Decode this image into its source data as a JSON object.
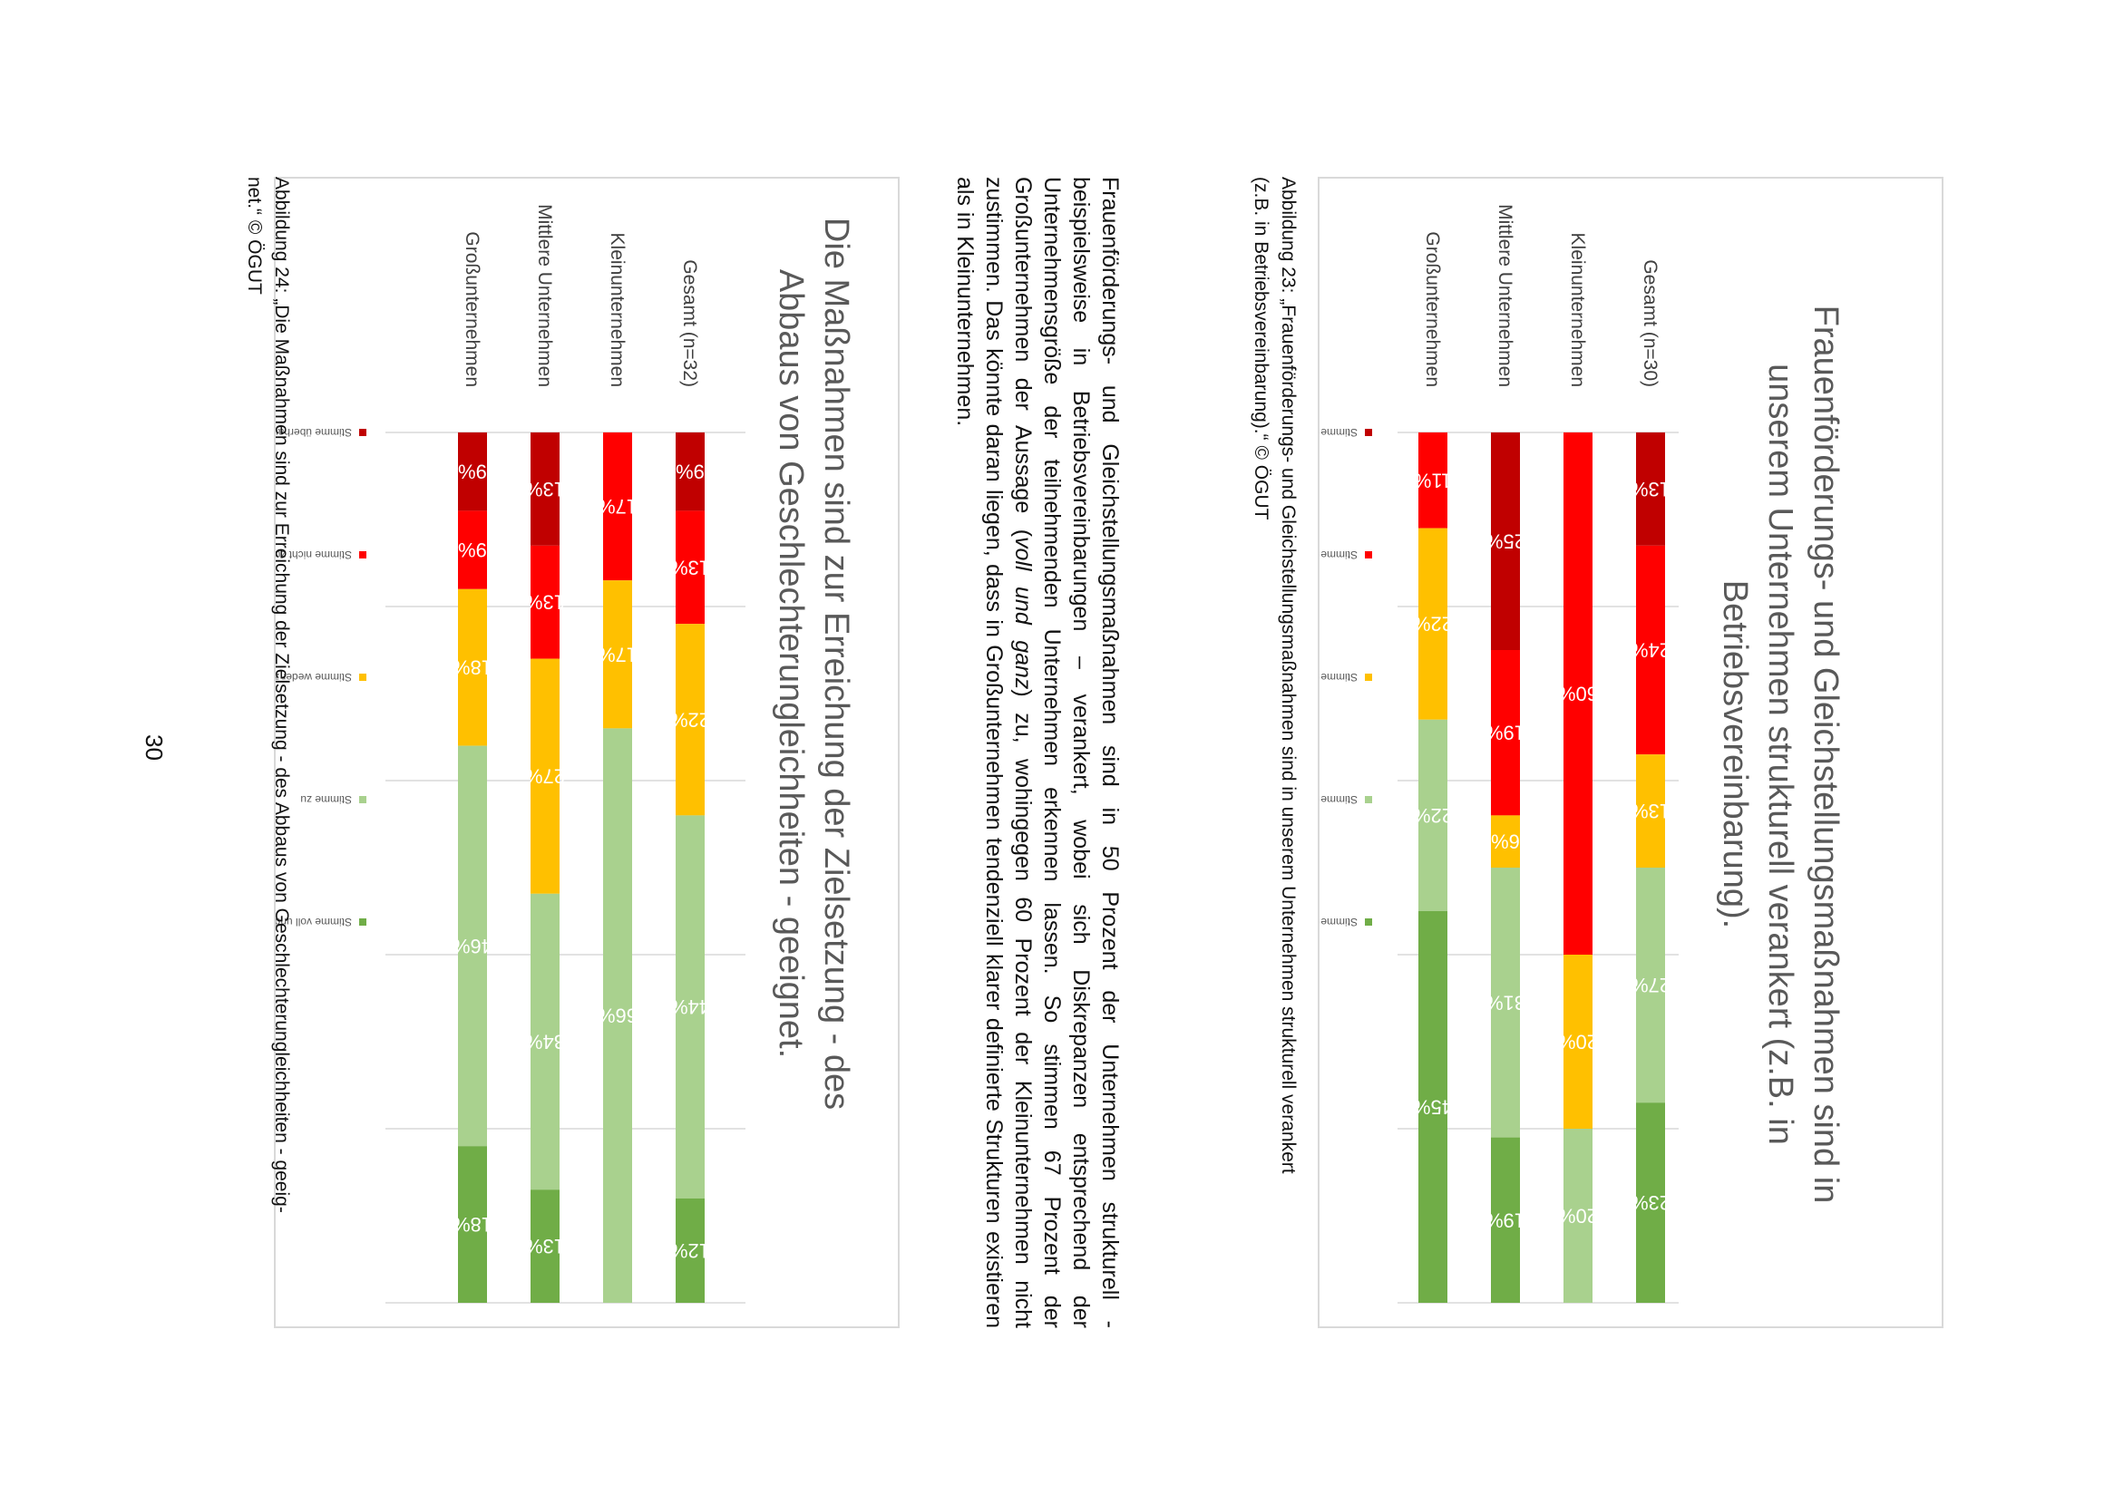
{
  "chart_data": [
    {
      "type": "bar",
      "stacked": true,
      "orientation": "horizontal",
      "title": "Frauenförderungs- und Gleichstellungsmaßnahmen sind in unserem Unternehmen strukturell verankert (z.B. in Betriebsvereinbarung).",
      "title_lines": [
        "Frauenförderungs- und Gleichstellungsmaßnahmen sind in",
        "unserem Unternehmen strukturell verankert (z.B. in",
        "Betriebsvereinbarung)."
      ],
      "categories": [
        "Gesamt (n=30)",
        "Kleinunternehmen",
        "Mittlere Unternehmen",
        "Großunternehmen"
      ],
      "series": [
        {
          "name": "Stimme überhaupt nicht zu",
          "color": "#C00000",
          "values": [
            13,
            0,
            25,
            0
          ]
        },
        {
          "name": "Stimme nicht zu",
          "color": "#FF0000",
          "values": [
            24,
            60,
            19,
            11
          ]
        },
        {
          "name": "Stimme weder zu noch lehne ich ab",
          "color": "#FFC000",
          "values": [
            13,
            20,
            6,
            22
          ]
        },
        {
          "name": "Stimme zu",
          "color": "#A9D18E",
          "values": [
            27,
            20,
            31,
            22
          ]
        },
        {
          "name": "Stimme voll und ganz zu",
          "color": "#70AD47",
          "values": [
            23,
            0,
            19,
            45
          ]
        }
      ],
      "xlim": [
        0,
        100
      ],
      "legend": "bottom",
      "grid": true
    },
    {
      "type": "bar",
      "stacked": true,
      "orientation": "horizontal",
      "title": "Die Maßnahmen sind zur Erreichung der Zielsetzung - des Abbaus von Geschlechterungleichheiten - geeignet.",
      "title_lines": [
        "Die Maßnahmen sind zur Erreichung der Zielsetzung - des",
        "Abbaus von Geschlechterungleichheiten - geeignet."
      ],
      "categories": [
        "Gesamt (n=32)",
        "Kleinunternehmen",
        "Mittlere Unternehmen",
        "Großunternehmen"
      ],
      "series": [
        {
          "name": "Stimme überhaupt nicht zu",
          "color": "#C00000",
          "values": [
            9,
            0,
            13,
            9
          ]
        },
        {
          "name": "Stimme nicht zu",
          "color": "#FF0000",
          "values": [
            13,
            17,
            13,
            9
          ]
        },
        {
          "name": "Stimme weder zu noch lehne ich ab",
          "color": "#FFC000",
          "values": [
            22,
            17,
            27,
            18
          ]
        },
        {
          "name": "Stimme zu",
          "color": "#A9D18E",
          "values": [
            44,
            66,
            34,
            46
          ]
        },
        {
          "name": "Stimme voll und ganz zu",
          "color": "#70AD47",
          "values": [
            12,
            0,
            13,
            18
          ]
        }
      ],
      "xlim": [
        0,
        100
      ],
      "legend": "bottom",
      "grid": true
    }
  ],
  "captions": {
    "fig23_line1": "Abbildung 23: „Frauenförderungs- und Gleichstellungsmaßnahmen sind in unserem Unternehmen strukturell verankert",
    "fig23_line2": "(z.B. in Betriebsvereinbarung).“ © ÖGUT",
    "fig24_line1": "Abbildung 24: „Die Maßnahmen sind zur Erreichung der Zielsetzung - des Abbaus von Geschlechterungleichheiten - geeig-",
    "fig24_line2": "net.“ © ÖGUT"
  },
  "body": {
    "p1": "Frauenförderungs- und Gleichstellungsmaßnahmen sind in 50 Prozent der Unternehmen strukturell - beispielsweise in Betriebsvereinbarungen – verankert, wobei sich Diskrepanzen entsprechend der Unternehmensgröße der teilnehmenden Unternehmen erkennen lassen. So stimmen 67 Prozent der Großunternehmen der Aussage (",
    "p1_em": "voll und ganz",
    "p1_end": ") zu, wohingegen 60 Prozent der Kleinunternehmen nicht zustimmen. Das könnte daran liegen, dass in Großunternehmen tendenziell klarer definierte Strukturen existieren als in Kleinunternehmen."
  },
  "page_number": "30"
}
